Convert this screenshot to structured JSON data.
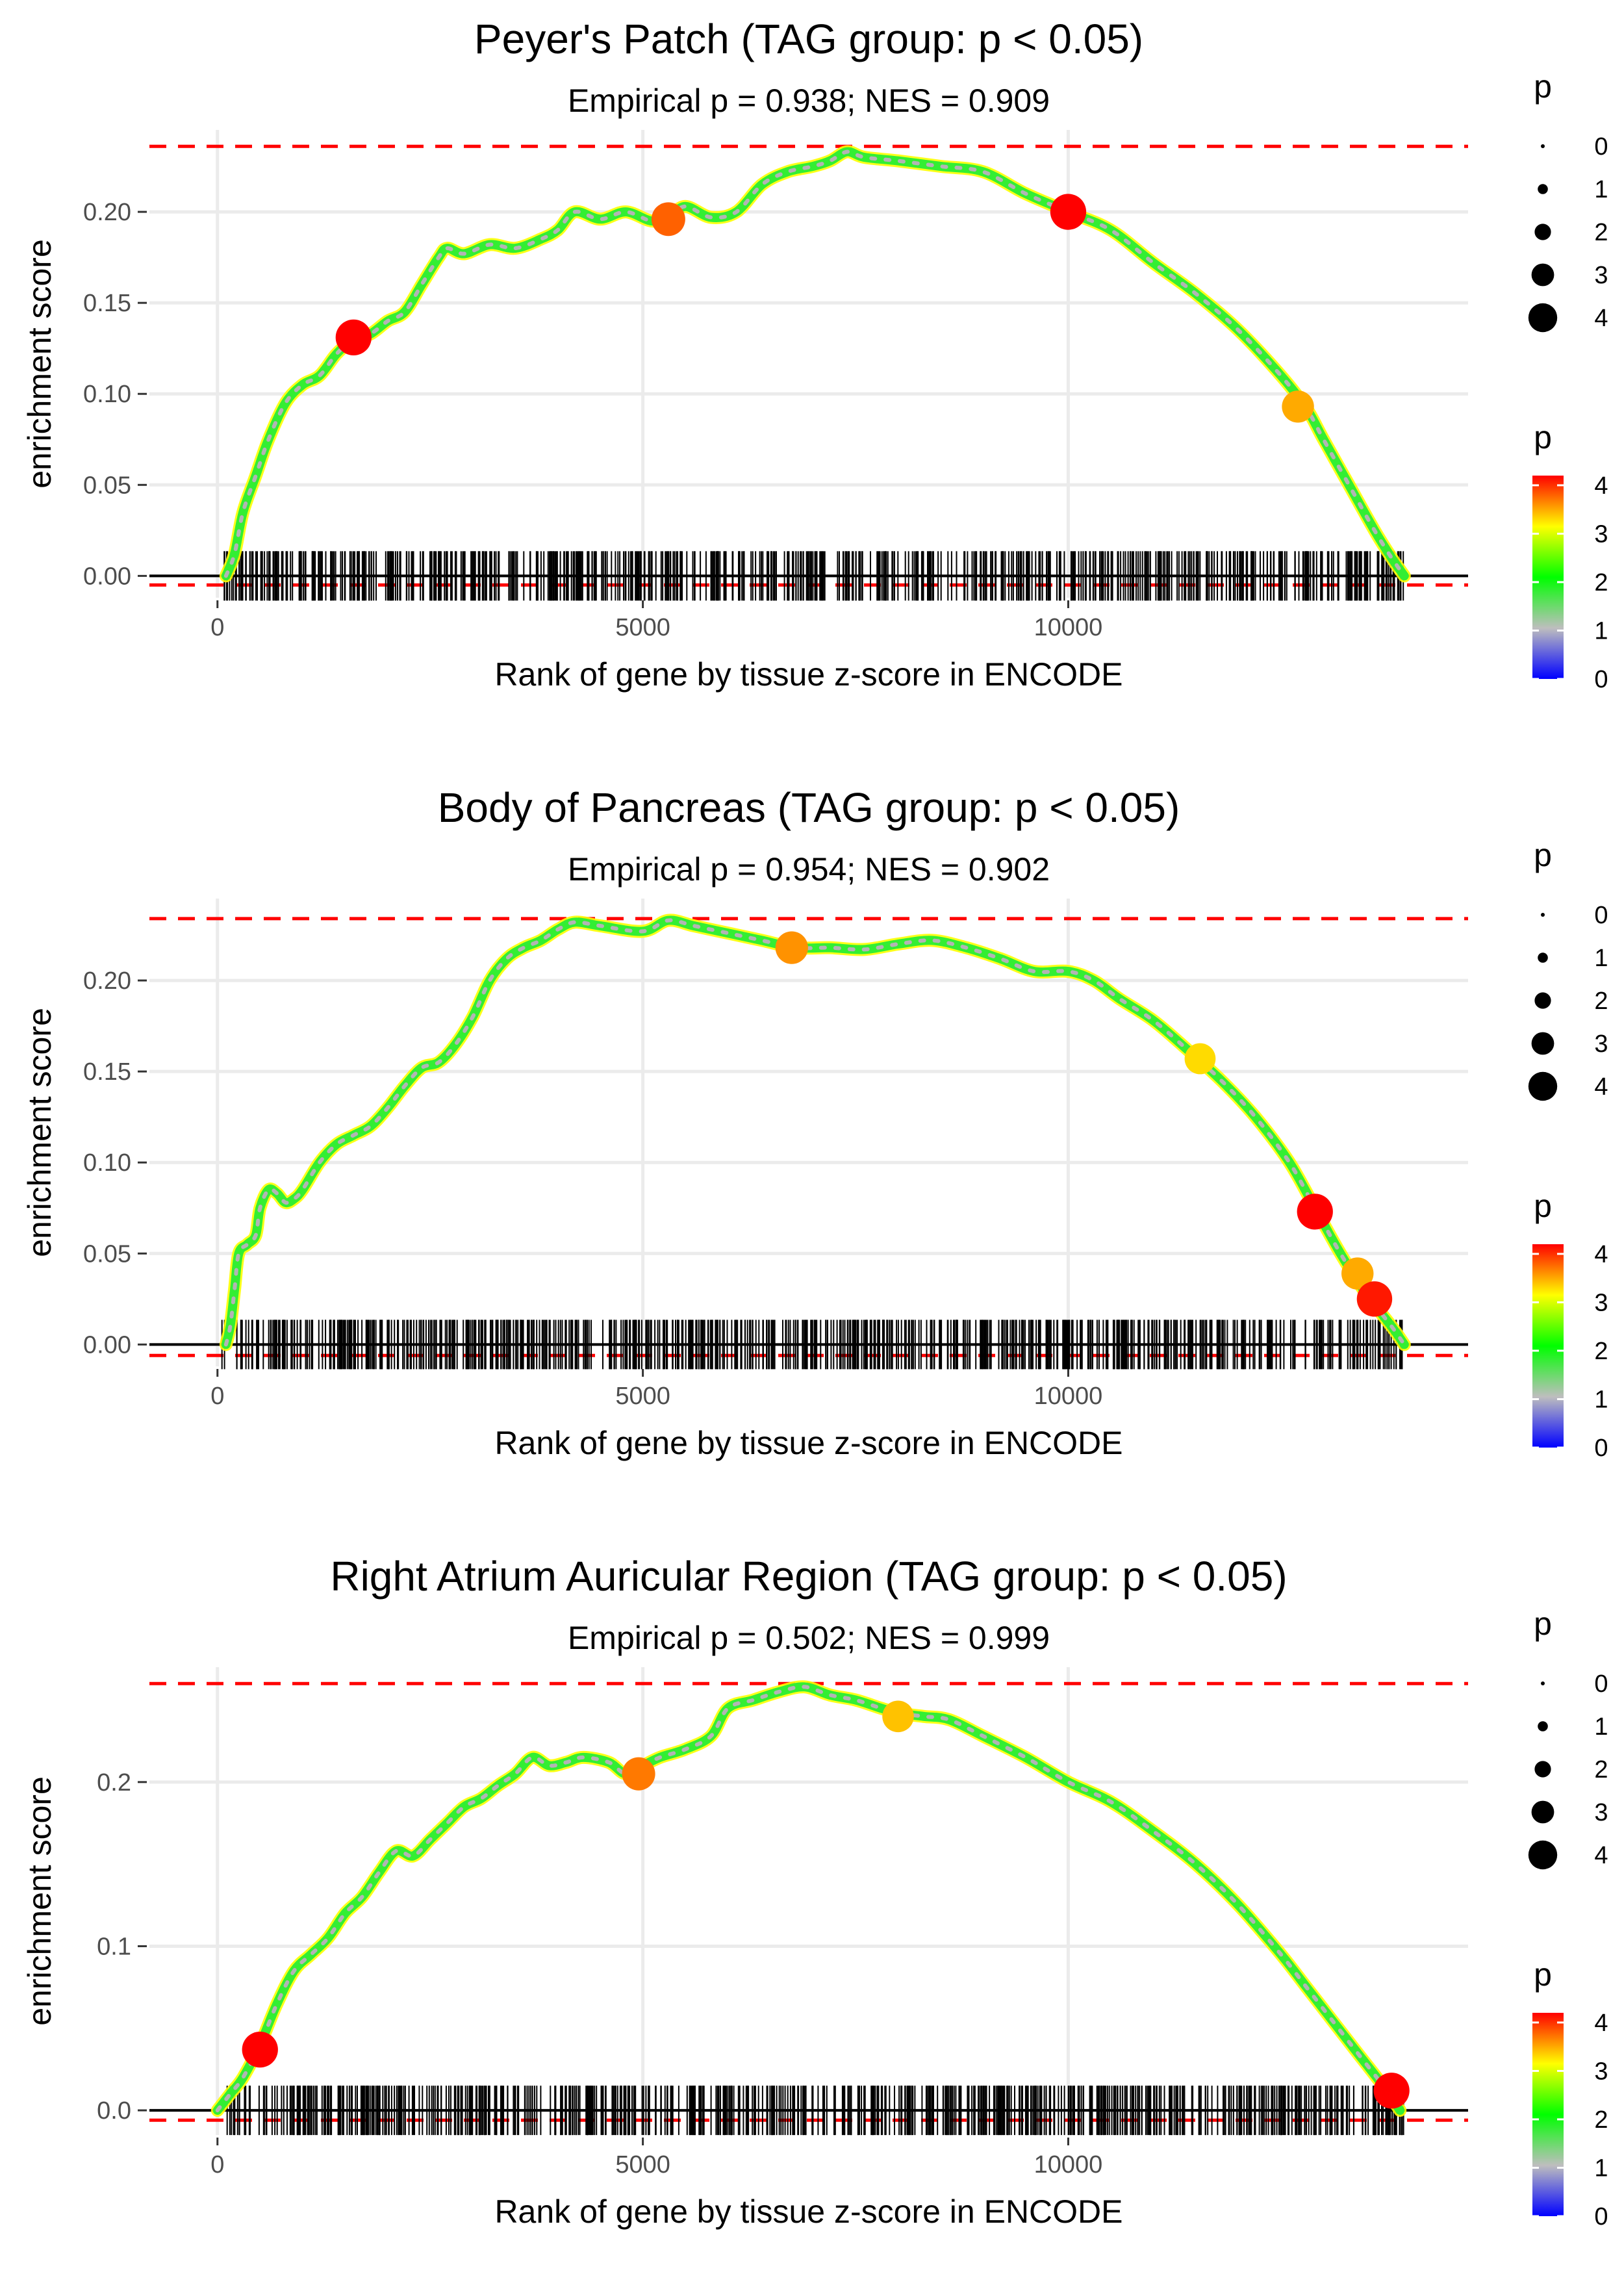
{
  "colors": {
    "threshold": "#ff0000",
    "grid": "#ebebeb",
    "gradient": [
      "#0000ff",
      "#bebebe",
      "#00ff00",
      "#ffff00",
      "#ff0000"
    ]
  },
  "chart_data": [
    {
      "type": "line",
      "title": "Peyer's Patch (TAG group: p < 0.05)",
      "subtitle": "Empirical p = 0.938; NES = 0.909",
      "xlabel": "Rank of gene by tissue z-score in ENCODE",
      "ylabel": "enrichment score",
      "xlim": [
        -800,
        14700
      ],
      "ylim": [
        -0.012,
        0.245
      ],
      "xticks": [
        0,
        5000,
        10000
      ],
      "xtick_labels": [
        "0",
        "5000",
        "10000"
      ],
      "yticks": [
        0,
        0.05,
        0.1,
        0.15,
        0.2
      ],
      "ytick_labels": [
        "0.00",
        "0.05",
        "0.10",
        "0.15",
        "0.20"
      ],
      "threshold_upper": 0.236,
      "threshold_lower": -0.005,
      "curve": [
        [
          100,
          0
        ],
        [
          200,
          0.012
        ],
        [
          300,
          0.035
        ],
        [
          450,
          0.055
        ],
        [
          600,
          0.075
        ],
        [
          800,
          0.095
        ],
        [
          1000,
          0.105
        ],
        [
          1200,
          0.11
        ],
        [
          1400,
          0.122
        ],
        [
          1600,
          0.13
        ],
        [
          1800,
          0.133
        ],
        [
          2000,
          0.14
        ],
        [
          2200,
          0.145
        ],
        [
          2400,
          0.16
        ],
        [
          2600,
          0.175
        ],
        [
          2700,
          0.18
        ],
        [
          2900,
          0.177
        ],
        [
          3200,
          0.182
        ],
        [
          3500,
          0.18
        ],
        [
          3800,
          0.185
        ],
        [
          4000,
          0.19
        ],
        [
          4200,
          0.2
        ],
        [
          4500,
          0.196
        ],
        [
          4800,
          0.2
        ],
        [
          5100,
          0.195
        ],
        [
          5300,
          0.197
        ],
        [
          5500,
          0.203
        ],
        [
          5800,
          0.197
        ],
        [
          6100,
          0.2
        ],
        [
          6400,
          0.215
        ],
        [
          6700,
          0.222
        ],
        [
          7000,
          0.225
        ],
        [
          7200,
          0.228
        ],
        [
          7400,
          0.233
        ],
        [
          7600,
          0.23
        ],
        [
          8000,
          0.228
        ],
        [
          8500,
          0.225
        ],
        [
          9000,
          0.222
        ],
        [
          9500,
          0.21
        ],
        [
          10000,
          0.2
        ],
        [
          10500,
          0.19
        ],
        [
          11000,
          0.172
        ],
        [
          11500,
          0.155
        ],
        [
          12000,
          0.135
        ],
        [
          12500,
          0.11
        ],
        [
          12800,
          0.092
        ],
        [
          13000,
          0.075
        ],
        [
          13300,
          0.05
        ],
        [
          13600,
          0.025
        ],
        [
          13800,
          0.01
        ],
        [
          13950,
          0
        ]
      ],
      "highlight_points": [
        {
          "x": 1600,
          "y": 0.131,
          "p": 4.2
        },
        {
          "x": 5300,
          "y": 0.196,
          "p": 3.8
        },
        {
          "x": 10000,
          "y": 0.2,
          "p": 4.2
        },
        {
          "x": 12700,
          "y": 0.093,
          "p": 3.5
        }
      ],
      "gene_ranks": {
        "min": 50,
        "max": 13950,
        "count": 720
      },
      "legend_size": {
        "title": "p",
        "values": [
          "0",
          "1",
          "2",
          "3",
          "4"
        ]
      },
      "legend_color": {
        "title": "p",
        "ticks": [
          "0",
          "1",
          "2",
          "3",
          "4"
        ],
        "range": [
          0,
          4.2
        ]
      }
    },
    {
      "type": "line",
      "title": "Body of Pancreas (TAG group: p < 0.05)",
      "subtitle": "Empirical p = 0.954; NES = 0.902",
      "xlabel": "Rank of gene by tissue z-score in ENCODE",
      "ylabel": "enrichment score",
      "xlim": [
        -800,
        14700
      ],
      "ylim": [
        -0.012,
        0.245
      ],
      "xticks": [
        0,
        5000,
        10000
      ],
      "xtick_labels": [
        "0",
        "5000",
        "10000"
      ],
      "yticks": [
        0,
        0.05,
        0.1,
        0.15,
        0.2
      ],
      "ytick_labels": [
        "0.00",
        "0.05",
        "0.10",
        "0.15",
        "0.20"
      ],
      "threshold_upper": 0.234,
      "threshold_lower": -0.006,
      "curve": [
        [
          100,
          0
        ],
        [
          150,
          0.01
        ],
        [
          200,
          0.03
        ],
        [
          250,
          0.05
        ],
        [
          350,
          0.055
        ],
        [
          450,
          0.06
        ],
        [
          500,
          0.075
        ],
        [
          600,
          0.085
        ],
        [
          700,
          0.083
        ],
        [
          800,
          0.078
        ],
        [
          900,
          0.08
        ],
        [
          1000,
          0.085
        ],
        [
          1200,
          0.1
        ],
        [
          1400,
          0.11
        ],
        [
          1600,
          0.115
        ],
        [
          1800,
          0.12
        ],
        [
          2000,
          0.13
        ],
        [
          2200,
          0.142
        ],
        [
          2400,
          0.152
        ],
        [
          2600,
          0.155
        ],
        [
          2800,
          0.165
        ],
        [
          3000,
          0.18
        ],
        [
          3200,
          0.2
        ],
        [
          3400,
          0.212
        ],
        [
          3600,
          0.218
        ],
        [
          3800,
          0.222
        ],
        [
          4000,
          0.228
        ],
        [
          4200,
          0.232
        ],
        [
          4500,
          0.23
        ],
        [
          5000,
          0.227
        ],
        [
          5300,
          0.233
        ],
        [
          5600,
          0.23
        ],
        [
          6000,
          0.226
        ],
        [
          6400,
          0.222
        ],
        [
          6800,
          0.218
        ],
        [
          7200,
          0.218
        ],
        [
          7600,
          0.217
        ],
        [
          8000,
          0.22
        ],
        [
          8400,
          0.222
        ],
        [
          8800,
          0.218
        ],
        [
          9200,
          0.212
        ],
        [
          9600,
          0.205
        ],
        [
          10000,
          0.205
        ],
        [
          10300,
          0.2
        ],
        [
          10600,
          0.19
        ],
        [
          11000,
          0.178
        ],
        [
          11400,
          0.162
        ],
        [
          11800,
          0.145
        ],
        [
          12200,
          0.125
        ],
        [
          12600,
          0.1
        ],
        [
          12900,
          0.075
        ],
        [
          13200,
          0.05
        ],
        [
          13500,
          0.028
        ],
        [
          13800,
          0.01
        ],
        [
          13950,
          0
        ]
      ],
      "highlight_points": [
        {
          "x": 6750,
          "y": 0.218,
          "p": 3.6
        },
        {
          "x": 11550,
          "y": 0.157,
          "p": 3.3
        },
        {
          "x": 12900,
          "y": 0.073,
          "p": 4.2
        },
        {
          "x": 13400,
          "y": 0.039,
          "p": 3.5
        },
        {
          "x": 13600,
          "y": 0.025,
          "p": 4.1
        }
      ],
      "gene_ranks": {
        "min": 50,
        "max": 13950,
        "count": 720
      },
      "legend_size": {
        "title": "p",
        "values": [
          "0",
          "1",
          "2",
          "3",
          "4"
        ]
      },
      "legend_color": {
        "title": "p",
        "ticks": [
          "0",
          "1",
          "2",
          "3",
          "4"
        ],
        "range": [
          0,
          4.2
        ]
      }
    },
    {
      "type": "line",
      "title": "Right Atrium Auricular Region (TAG group: p < 0.05)",
      "subtitle": "Empirical p = 0.502; NES = 0.999",
      "xlabel": "Rank of gene by tissue z-score in ENCODE",
      "ylabel": "enrichment score",
      "xlim": [
        -800,
        14700
      ],
      "ylim": [
        -0.015,
        0.27
      ],
      "xticks": [
        0,
        5000,
        10000
      ],
      "xtick_labels": [
        "0",
        "5000",
        "10000"
      ],
      "yticks": [
        0,
        0.1,
        0.2
      ],
      "ytick_labels": [
        "0.0",
        "0.1",
        "0.2"
      ],
      "threshold_upper": 0.26,
      "threshold_lower": -0.006,
      "curve": [
        [
          0,
          0
        ],
        [
          150,
          0.01
        ],
        [
          300,
          0.02
        ],
        [
          500,
          0.04
        ],
        [
          700,
          0.065
        ],
        [
          900,
          0.085
        ],
        [
          1100,
          0.095
        ],
        [
          1300,
          0.105
        ],
        [
          1500,
          0.12
        ],
        [
          1700,
          0.13
        ],
        [
          1900,
          0.145
        ],
        [
          2100,
          0.158
        ],
        [
          2300,
          0.155
        ],
        [
          2500,
          0.165
        ],
        [
          2700,
          0.175
        ],
        [
          2900,
          0.185
        ],
        [
          3100,
          0.19
        ],
        [
          3300,
          0.198
        ],
        [
          3500,
          0.205
        ],
        [
          3700,
          0.215
        ],
        [
          3900,
          0.21
        ],
        [
          4100,
          0.212
        ],
        [
          4300,
          0.215
        ],
        [
          4600,
          0.212
        ],
        [
          4800,
          0.205
        ],
        [
          5000,
          0.21
        ],
        [
          5200,
          0.215
        ],
        [
          5500,
          0.22
        ],
        [
          5800,
          0.228
        ],
        [
          6000,
          0.245
        ],
        [
          6300,
          0.25
        ],
        [
          6600,
          0.255
        ],
        [
          6900,
          0.258
        ],
        [
          7200,
          0.253
        ],
        [
          7500,
          0.25
        ],
        [
          7800,
          0.245
        ],
        [
          8000,
          0.242
        ],
        [
          8300,
          0.24
        ],
        [
          8600,
          0.238
        ],
        [
          9000,
          0.228
        ],
        [
          9500,
          0.215
        ],
        [
          10000,
          0.2
        ],
        [
          10500,
          0.188
        ],
        [
          11000,
          0.17
        ],
        [
          11500,
          0.15
        ],
        [
          12000,
          0.125
        ],
        [
          12500,
          0.095
        ],
        [
          12800,
          0.075
        ],
        [
          13100,
          0.055
        ],
        [
          13400,
          0.035
        ],
        [
          13700,
          0.015
        ],
        [
          13900,
          0
        ]
      ],
      "highlight_points": [
        {
          "x": 500,
          "y": 0.037,
          "p": 4.2
        },
        {
          "x": 4950,
          "y": 0.205,
          "p": 3.7
        },
        {
          "x": 8000,
          "y": 0.24,
          "p": 3.4
        },
        {
          "x": 13800,
          "y": 0.012,
          "p": 4.2
        }
      ],
      "gene_ranks": {
        "min": 50,
        "max": 13950,
        "count": 720
      },
      "legend_size": {
        "title": "p",
        "values": [
          "0",
          "1",
          "2",
          "3",
          "4"
        ]
      },
      "legend_color": {
        "title": "p",
        "ticks": [
          "0",
          "1",
          "2",
          "3",
          "4"
        ],
        "range": [
          0,
          4.2
        ]
      }
    }
  ]
}
